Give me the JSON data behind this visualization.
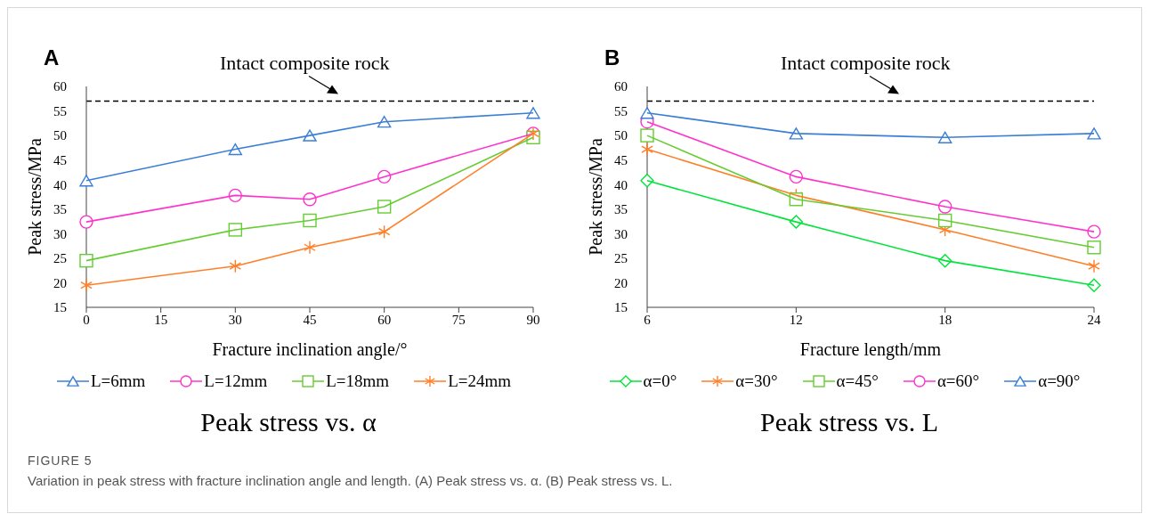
{
  "chart_data": [
    {
      "type": "line",
      "title": "Peak stress vs. α",
      "xlabel": "Fracture inclination angle/°",
      "ylabel": "Peak stress/MPa",
      "x": [
        0,
        30,
        45,
        60,
        90
      ],
      "xlim": [
        0,
        90
      ],
      "xticks": [
        0,
        15,
        30,
        45,
        60,
        75,
        90
      ],
      "ylim": [
        15,
        60
      ],
      "yticks": [
        15,
        20,
        25,
        30,
        35,
        40,
        45,
        50,
        55,
        60
      ],
      "legend": "bottom",
      "annotations": [
        "A"
      ],
      "ref_lines": [
        {
          "axis": "y",
          "value": 57,
          "label": "Intact composite rock",
          "color": "#000000",
          "line_style": "dashed"
        }
      ],
      "series": [
        {
          "name": "L=6mm",
          "color": "#3a7fd5",
          "marker": "triangle",
          "values": [
            40.8,
            47.2,
            50.0,
            52.8,
            54.6
          ]
        },
        {
          "name": "L=12mm",
          "color": "#ff33cc",
          "marker": "circle",
          "values": [
            32.4,
            37.8,
            37.0,
            41.6,
            50.4
          ]
        },
        {
          "name": "L=18mm",
          "color": "#66cc33",
          "marker": "square",
          "values": [
            24.5,
            30.8,
            32.7,
            35.5,
            49.6
          ]
        },
        {
          "name": "L=24mm",
          "color": "#ff7f27",
          "marker": "cross",
          "values": [
            19.5,
            23.4,
            27.2,
            30.4,
            50.4
          ]
        }
      ]
    },
    {
      "type": "line",
      "title": "Peak stress vs. L",
      "xlabel": "Fracture length/mm",
      "ylabel": "Peak stress/MPa",
      "x": [
        6,
        12,
        18,
        24
      ],
      "xlim": [
        6,
        24
      ],
      "xticks": [
        6,
        12,
        18,
        24
      ],
      "ylim": [
        15,
        60
      ],
      "yticks": [
        15,
        20,
        25,
        30,
        35,
        40,
        45,
        50,
        55,
        60
      ],
      "legend": "bottom",
      "annotations": [
        "B",
        "FIGURE 5",
        "Variation in peak stress with fracture inclination angle and length. (A) Peak stress vs. α. (B) Peak stress vs. L."
      ],
      "ref_lines": [
        {
          "axis": "y",
          "value": 57,
          "label": "Intact composite rock",
          "color": "#000000",
          "line_style": "dashed"
        }
      ],
      "series": [
        {
          "name": "α=0°",
          "color": "#00e33a",
          "marker": "diamond",
          "values": [
            40.8,
            32.4,
            24.5,
            19.5
          ]
        },
        {
          "name": "α=30°",
          "color": "#ff7f27",
          "marker": "cross",
          "values": [
            47.2,
            37.8,
            30.8,
            23.4
          ]
        },
        {
          "name": "α=45°",
          "color": "#66cc33",
          "marker": "square",
          "values": [
            50.0,
            37.0,
            32.7,
            27.2
          ]
        },
        {
          "name": "α=60°",
          "color": "#ff33cc",
          "marker": "circle",
          "values": [
            52.8,
            41.6,
            35.5,
            30.4
          ]
        },
        {
          "name": "α=90°",
          "color": "#3a7fd5",
          "marker": "triangle",
          "values": [
            54.6,
            50.4,
            49.6,
            50.4
          ]
        }
      ]
    }
  ]
}
